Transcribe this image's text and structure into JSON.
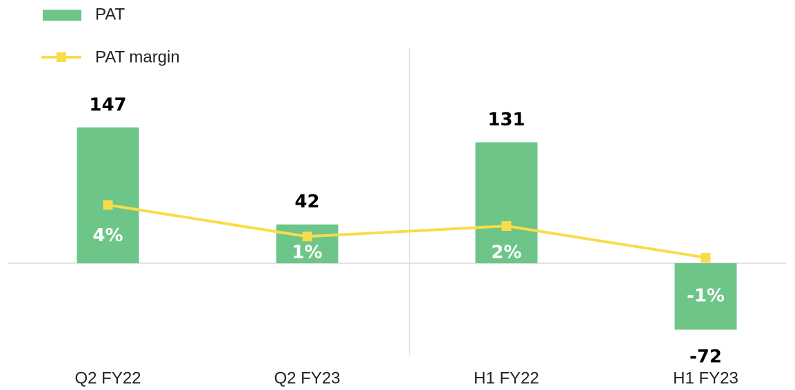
{
  "chart_data": {
    "type": "bar",
    "categories": [
      "Q2 FY22",
      "Q2 FY23",
      "H1 FY22",
      "H1 FY23"
    ],
    "series": [
      {
        "name": "PAT",
        "type": "bar",
        "color": "#6dc688",
        "values": [
          147,
          42,
          131,
          -72
        ]
      },
      {
        "name": "PAT margin",
        "type": "line",
        "axis": "y2",
        "color": "#f9dc4a",
        "values": [
          4,
          1,
          2,
          -1
        ],
        "value_labels": [
          "4%",
          "1%",
          "2%",
          "-1%"
        ]
      }
    ],
    "ylim": [
      -100,
      200
    ],
    "y2lim": [
      -10.3,
      16
    ]
  }
}
